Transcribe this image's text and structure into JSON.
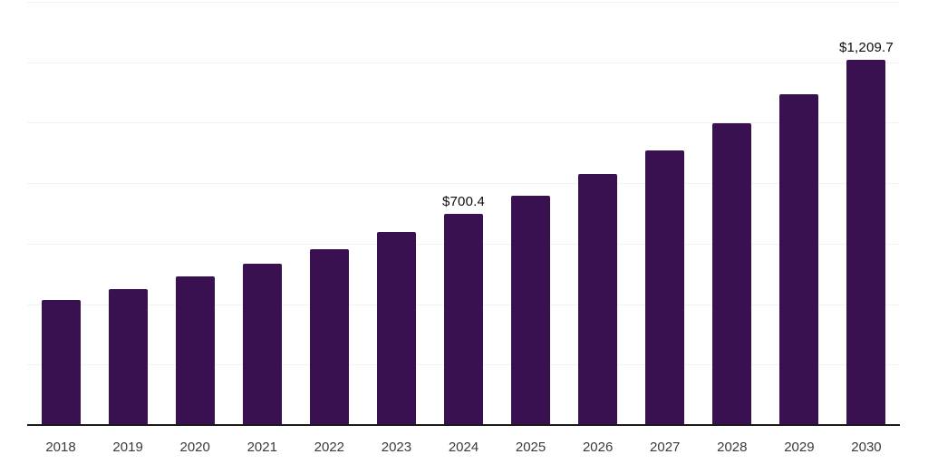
{
  "chart_data": {
    "type": "bar",
    "title": "",
    "xlabel": "",
    "ylabel": "",
    "categories": [
      "2018",
      "2019",
      "2020",
      "2021",
      "2022",
      "2023",
      "2024",
      "2025",
      "2026",
      "2027",
      "2028",
      "2029",
      "2030"
    ],
    "values": [
      418,
      453,
      494,
      537,
      584,
      641,
      700.4,
      763,
      834,
      912,
      1002,
      1098,
      1209.7
    ],
    "data_labels": [
      "",
      "",
      "",
      "",
      "",
      "",
      "$700.4",
      "",
      "",
      "",
      "",
      "",
      "$1,209.7"
    ],
    "ylim": [
      0,
      1400
    ],
    "gridline_step": 200,
    "grid": "horizontal-only",
    "y_axis_tick_labels_visible": false,
    "legend": "none"
  },
  "style": {
    "background_color": "#ffffff",
    "bar_color": "#3a1150",
    "gridline_color": "#f2f2f2",
    "axis_line_color": "#1a1a1a",
    "tick_label_color": "#3a3a3a",
    "data_label_color": "#0d0d0d"
  }
}
